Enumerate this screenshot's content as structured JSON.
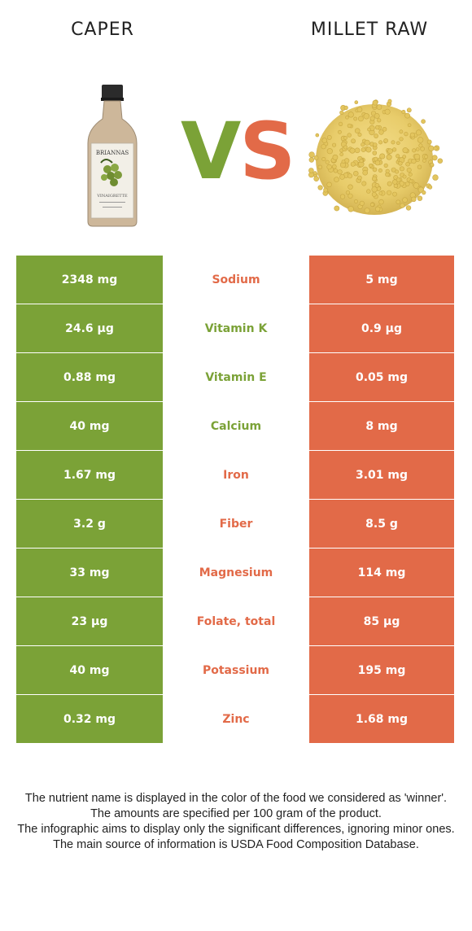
{
  "header": {
    "left_title": "CAPER",
    "right_title": "MILLET RAW",
    "vs_v": "V",
    "vs_s": "S"
  },
  "colors": {
    "left_food": "#7ba237",
    "right_food": "#e26a48"
  },
  "left_image": {
    "label_brand": "BRIANNAS",
    "label_sub": "VINAIGRETTE"
  },
  "rows": [
    {
      "left": "2348 mg",
      "nutrient": "Sodium",
      "right": "5 mg",
      "winner": "right"
    },
    {
      "left": "24.6 µg",
      "nutrient": "Vitamin K",
      "right": "0.9 µg",
      "winner": "left"
    },
    {
      "left": "0.88 mg",
      "nutrient": "Vitamin E",
      "right": "0.05 mg",
      "winner": "left"
    },
    {
      "left": "40 mg",
      "nutrient": "Calcium",
      "right": "8 mg",
      "winner": "left"
    },
    {
      "left": "1.67 mg",
      "nutrient": "Iron",
      "right": "3.01 mg",
      "winner": "right"
    },
    {
      "left": "3.2 g",
      "nutrient": "Fiber",
      "right": "8.5 g",
      "winner": "right"
    },
    {
      "left": "33 mg",
      "nutrient": "Magnesium",
      "right": "114 mg",
      "winner": "right"
    },
    {
      "left": "23 µg",
      "nutrient": "Folate, total",
      "right": "85 µg",
      "winner": "right"
    },
    {
      "left": "40 mg",
      "nutrient": "Potassium",
      "right": "195 mg",
      "winner": "right"
    },
    {
      "left": "0.32 mg",
      "nutrient": "Zinc",
      "right": "1.68 mg",
      "winner": "right"
    }
  ],
  "footer": {
    "line1": "The nutrient name is displayed in the color of the food we considered as 'winner'.",
    "line2": "The amounts are specified per 100 gram of the product.",
    "line3": "The infographic aims to display only the significant differences, ignoring minor ones.",
    "line4": "The main source of information is USDA Food Composition Database."
  }
}
